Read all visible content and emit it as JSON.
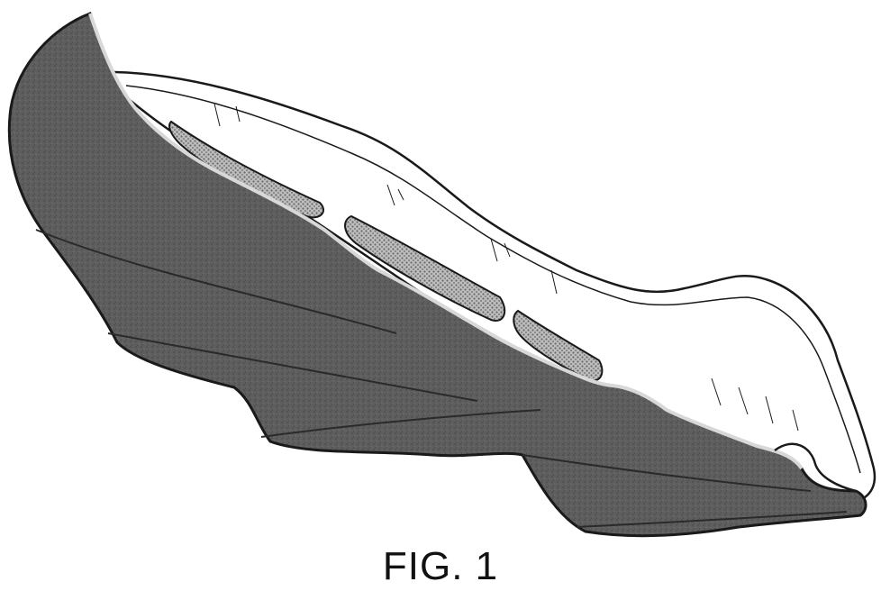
{
  "figure": {
    "label": "FIG. 1"
  },
  "colors": {
    "ink": "#1a1a1a",
    "sole_fill": "#5c5c5c",
    "sole_edge": "#3a3a3a",
    "upper_fill": "#ffffff",
    "mesh_fill": "#9a9a9a"
  }
}
